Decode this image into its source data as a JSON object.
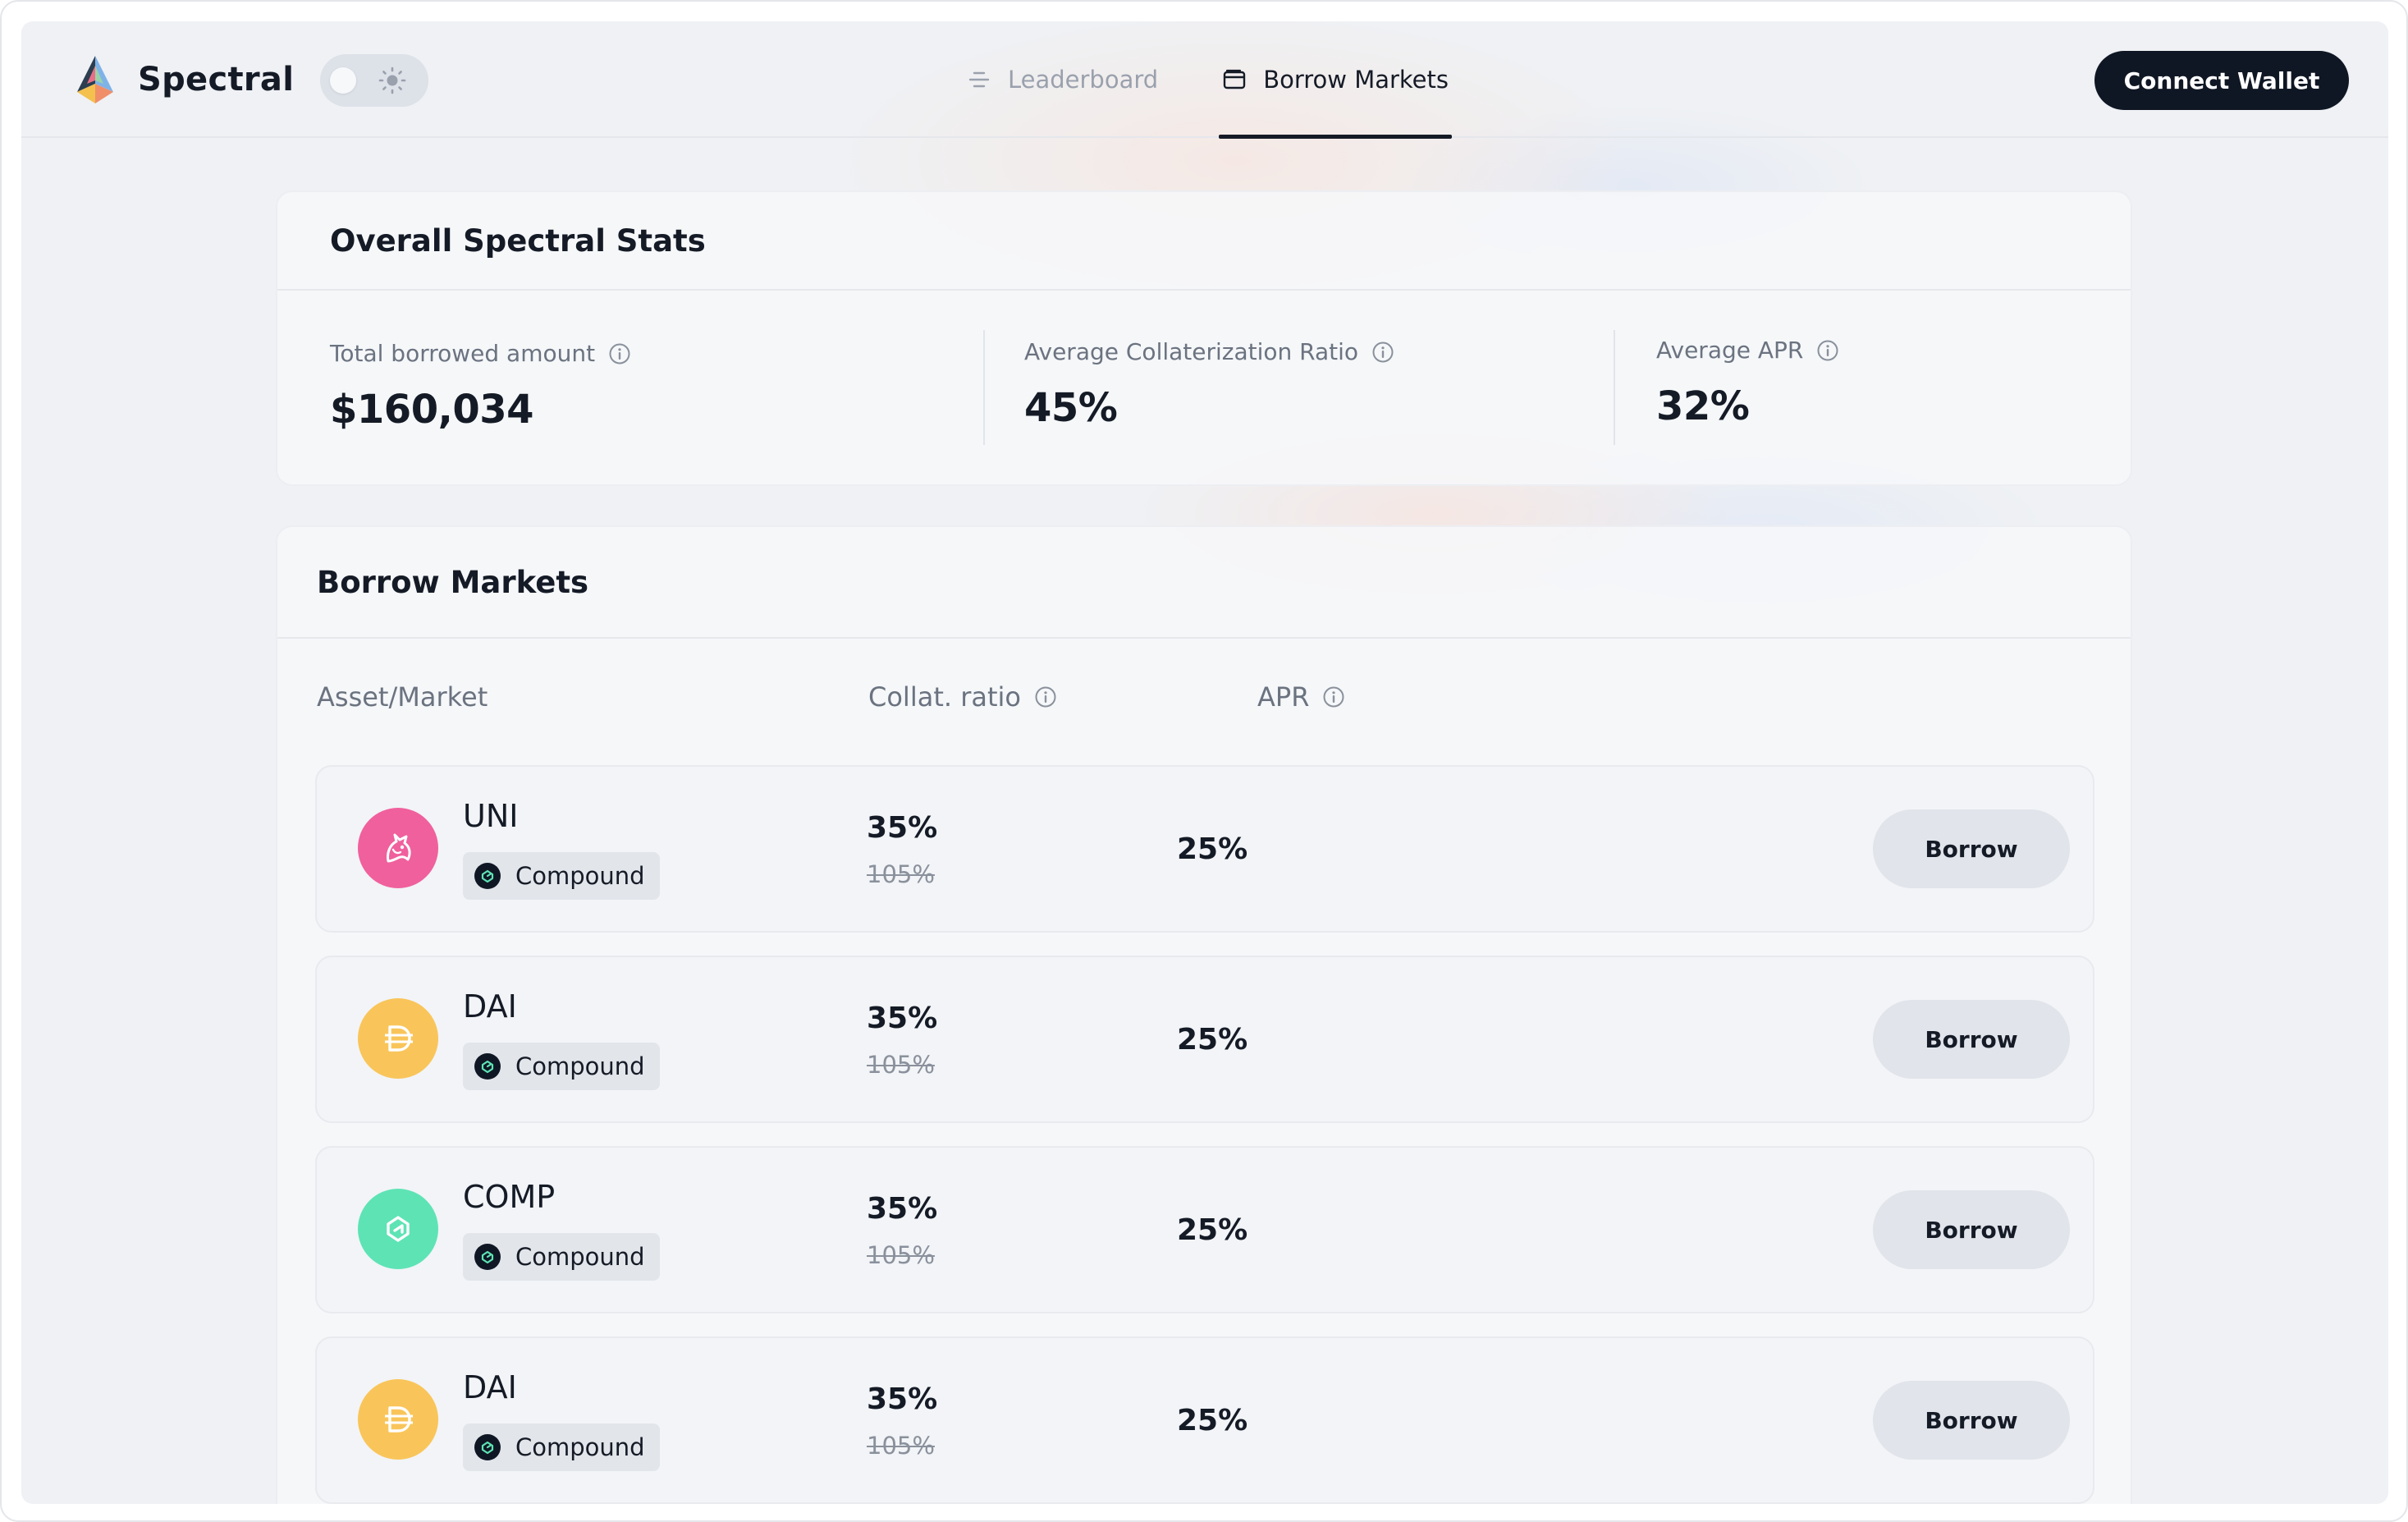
{
  "header": {
    "app_name": "Spectral",
    "nav": [
      {
        "label": "Leaderboard",
        "icon": "leaderboard-icon",
        "active": false
      },
      {
        "label": "Borrow Markets",
        "icon": "wallet-icon",
        "active": true
      }
    ],
    "theme_toggle": {
      "mode": "light",
      "icon": "sun-icon"
    },
    "connect_label": "Connect Wallet"
  },
  "stats": {
    "title": "Overall Spectral Stats",
    "items": [
      {
        "label": "Total borrowed amount",
        "value": "$160,034"
      },
      {
        "label": "Average Collaterization Ratio",
        "value": "45%"
      },
      {
        "label": "Average APR",
        "value": "32%"
      }
    ]
  },
  "markets": {
    "title": "Borrow Markets",
    "columns": [
      "Asset/Market",
      "Collat. ratio",
      "APR"
    ],
    "rows": [
      {
        "asset": "UNI",
        "market": "Compound",
        "ratio": "35%",
        "old_ratio": "105%",
        "apr": "25%",
        "borrow_label": "Borrow",
        "coin_color": "#f0609d",
        "coin_icon": "unicorn-icon"
      },
      {
        "asset": "DAI",
        "market": "Compound",
        "ratio": "35%",
        "old_ratio": "105%",
        "apr": "25%",
        "borrow_label": "Borrow",
        "coin_color": "#f9c55a",
        "coin_icon": "dai-icon"
      },
      {
        "asset": "COMP",
        "market": "Compound",
        "ratio": "35%",
        "old_ratio": "105%",
        "apr": "25%",
        "borrow_label": "Borrow",
        "coin_color": "#5ee3b5",
        "coin_icon": "comp-icon"
      },
      {
        "asset": "DAI",
        "market": "Compound",
        "ratio": "35%",
        "old_ratio": "105%",
        "apr": "25%",
        "borrow_label": "Borrow",
        "coin_color": "#f9c55a",
        "coin_icon": "dai-icon"
      }
    ]
  }
}
